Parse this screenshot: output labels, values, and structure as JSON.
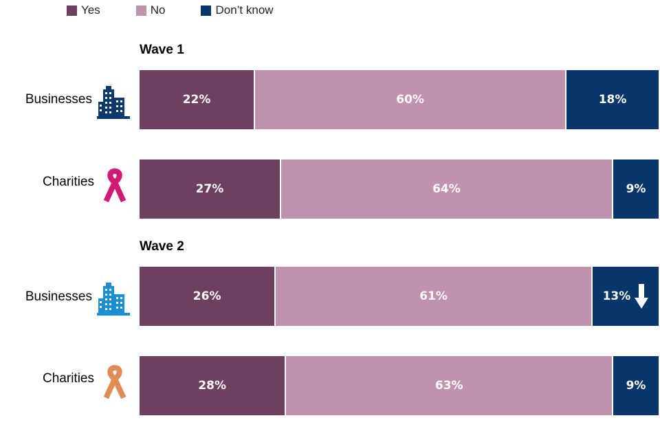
{
  "colors": {
    "yes": "#6e3f5e",
    "no": "#c192ad",
    "dont_know": "#07366a"
  },
  "legend": [
    {
      "label": "Yes",
      "color": "#6e3f5e"
    },
    {
      "label": "No",
      "color": "#c192ad"
    },
    {
      "label": "Don’t know",
      "color": "#07366a"
    }
  ],
  "chart_data": {
    "type": "bar",
    "orientation": "horizontal",
    "stacked": true,
    "percent_stacked": true,
    "title": "",
    "series_names": [
      "Yes",
      "No",
      "Don’t know"
    ],
    "groups": [
      {
        "title": "Wave 1",
        "rows": [
          {
            "label": "Businesses",
            "icon": "building-icon",
            "icon_color": "#0d3a6e",
            "values": [
              22,
              60,
              18
            ],
            "labels": [
              "22%",
              "60%",
              "18%"
            ],
            "dont_know_down_arrow": false
          },
          {
            "label": "Charities",
            "icon": "ribbon-icon",
            "icon_color": "#d11a74",
            "values": [
              27,
              64,
              9
            ],
            "labels": [
              "27%",
              "64%",
              "9%"
            ],
            "dont_know_down_arrow": false
          }
        ]
      },
      {
        "title": "Wave 2",
        "rows": [
          {
            "label": "Businesses",
            "icon": "building-icon",
            "icon_color": "#1b8fd6",
            "values": [
              26,
              61,
              13
            ],
            "labels": [
              "26%",
              "61%",
              "13%"
            ],
            "dont_know_down_arrow": true
          },
          {
            "label": "Charities",
            "icon": "ribbon-icon",
            "icon_color": "#e08a55",
            "values": [
              28,
              63,
              9
            ],
            "labels": [
              "28%",
              "63%",
              "9%"
            ],
            "dont_know_down_arrow": false
          }
        ]
      }
    ]
  }
}
